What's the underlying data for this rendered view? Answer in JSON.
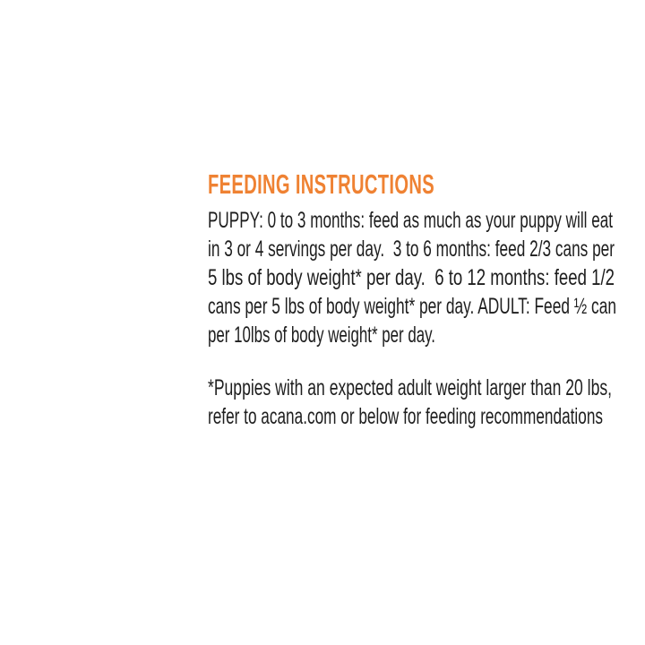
{
  "heading": "FEEDING INSTRUCTIONS",
  "accent_color": "#ef8233",
  "instructions_lines": [
    "PUPPY: 0 to 3 months: feed as much as your puppy will eat",
    "in 3 or 4 servings per day.  3 to 6 months: feed 2/3 cans per",
    "5 lbs of body weight* per day.  6 to 12 months: feed 1/2",
    "cans per 5 lbs of body weight* per day. ADULT: Feed ½ can",
    "per 10lbs of body weight* per day."
  ],
  "footnote_lines": [
    "*Puppies with an expected adult weight larger than 20 lbs,",
    "refer to acana.com or below for feeding recommendations"
  ]
}
